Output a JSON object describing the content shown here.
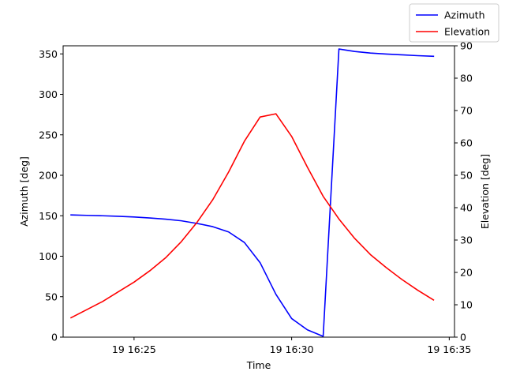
{
  "chart_data": {
    "type": "line",
    "xlabel": "Time",
    "ylabel_left": "Azimuth [deg]",
    "ylabel_right": "Elevation [deg]",
    "xlim": [
      "19 16:22:45",
      "19 16:35:10"
    ],
    "ylim_left": [
      0,
      360
    ],
    "ylim_right": [
      0,
      90
    ],
    "x_ticks": [
      {
        "time": "19 16:25:00",
        "label": "19 16:25"
      },
      {
        "time": "19 16:30:00",
        "label": "19 16:30"
      },
      {
        "time": "19 16:35:00",
        "label": "19 16:35"
      }
    ],
    "y_ticks_left": [
      0,
      50,
      100,
      150,
      200,
      250,
      300,
      350
    ],
    "y_ticks_right": [
      0,
      10,
      20,
      30,
      40,
      50,
      60,
      70,
      80,
      90
    ],
    "legend_position": "top-right",
    "series": [
      {
        "name": "Azimuth",
        "axis": "left",
        "color": "#0000ff",
        "x": [
          "19 16:23:00",
          "19 16:23:30",
          "19 16:24:00",
          "19 16:24:30",
          "19 16:25:00",
          "19 16:25:30",
          "19 16:26:00",
          "19 16:26:30",
          "19 16:27:00",
          "19 16:27:30",
          "19 16:28:00",
          "19 16:28:30",
          "19 16:29:00",
          "19 16:29:30",
          "19 16:30:00",
          "19 16:30:30",
          "19 16:31:00",
          "19 16:31:30",
          "19 16:32:00",
          "19 16:32:30",
          "19 16:33:00",
          "19 16:33:30",
          "19 16:34:00",
          "19 16:34:30"
        ],
        "values": [
          151,
          150.5,
          150,
          149.3,
          148.5,
          147.3,
          145.8,
          143.8,
          140.5,
          136.5,
          130,
          117,
          92,
          53,
          23,
          9,
          1,
          356,
          353,
          351,
          349.8,
          348.8,
          347.8,
          347
        ]
      },
      {
        "name": "Elevation",
        "axis": "right",
        "color": "#ff0000",
        "x": [
          "19 16:23:00",
          "19 16:23:30",
          "19 16:24:00",
          "19 16:24:30",
          "19 16:25:00",
          "19 16:25:30",
          "19 16:26:00",
          "19 16:26:30",
          "19 16:27:00",
          "19 16:27:30",
          "19 16:28:00",
          "19 16:28:30",
          "19 16:29:00",
          "19 16:29:30",
          "19 16:30:00",
          "19 16:30:30",
          "19 16:31:00",
          "19 16:31:30",
          "19 16:32:00",
          "19 16:32:30",
          "19 16:33:00",
          "19 16:33:30",
          "19 16:34:00",
          "19 16:34:30"
        ],
        "values": [
          6,
          8.5,
          11,
          14,
          17,
          20.5,
          24.5,
          29.5,
          35.5,
          42.5,
          51,
          60.5,
          68,
          69,
          62,
          52.5,
          43.5,
          36.5,
          30.5,
          25.5,
          21.5,
          17.8,
          14.5,
          11.5
        ]
      }
    ]
  }
}
